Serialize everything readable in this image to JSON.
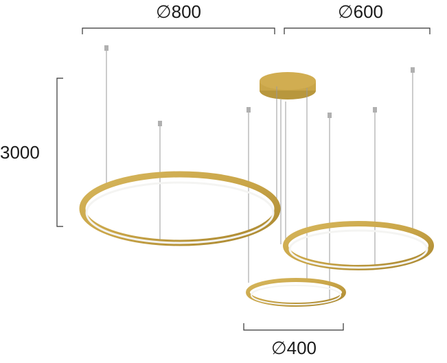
{
  "dimensions": {
    "large_diameter": "∅800",
    "medium_diameter": "∅600",
    "small_diameter": "∅400",
    "height": "3000"
  },
  "colors": {
    "ring_gold": "#c9a548",
    "ring_gold_dark": "#a8862f",
    "ring_inner_light": "#f4f4f2",
    "wire": "#9a9a9a",
    "dimension_line": "#333333"
  }
}
